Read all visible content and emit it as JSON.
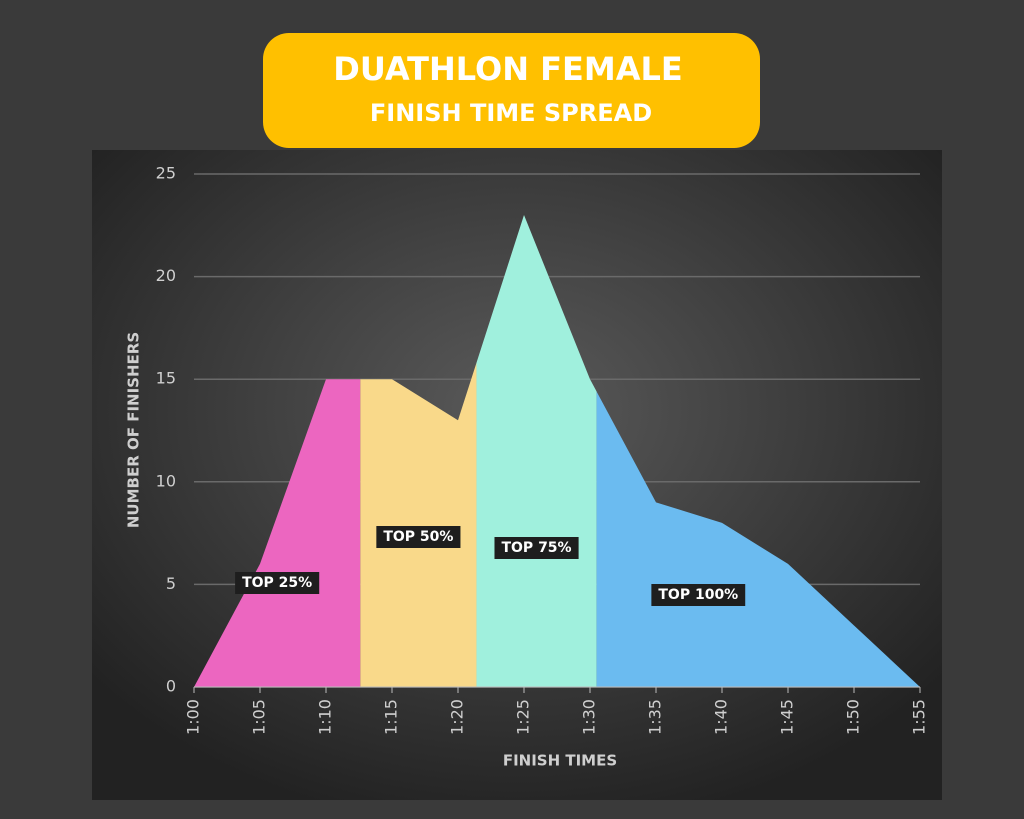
{
  "chart_data": {
    "type": "area",
    "title": "DUATHLON FEMALE",
    "subtitle": "FINISH TIME SPREAD",
    "x_label": "FINISH TIMES",
    "y_label": "NUMBER OF FINISHERS",
    "x": [
      60,
      65,
      70,
      75,
      80,
      85,
      90,
      95,
      100,
      105,
      110,
      115
    ],
    "values": [
      0,
      6,
      15,
      15,
      13,
      23,
      15,
      9,
      8,
      6,
      3,
      0
    ],
    "xlim": [
      60,
      115
    ],
    "xticks": [
      {
        "value": 60,
        "label": "1:00"
      },
      {
        "value": 65,
        "label": "1:05"
      },
      {
        "value": 70,
        "label": "1:10"
      },
      {
        "value": 75,
        "label": "1:15"
      },
      {
        "value": 80,
        "label": "1:20"
      },
      {
        "value": 85,
        "label": "1:25"
      },
      {
        "value": 90,
        "label": "1:30"
      },
      {
        "value": 95,
        "label": "1:35"
      },
      {
        "value": 100,
        "label": "1:40"
      },
      {
        "value": 105,
        "label": "1:45"
      },
      {
        "value": 110,
        "label": "1:50"
      },
      {
        "value": 115,
        "label": "1:55"
      }
    ],
    "ylim": [
      0,
      25
    ],
    "yticks": [
      0,
      5,
      10,
      15,
      20,
      25
    ],
    "grid": true,
    "bands": [
      {
        "label": "TOP 25%",
        "color": "#ec66c0",
        "x0": 60,
        "x1": 72.6
      },
      {
        "label": "TOP 50%",
        "color": "#f9d98a",
        "x0": 72.6,
        "x1": 81.4
      },
      {
        "label": "TOP 75%",
        "color": "#a0f0dd",
        "x0": 81.4,
        "x1": 90.5
      },
      {
        "label": "TOP 100%",
        "color": "#6bbbf0",
        "x0": 90.5,
        "x1": 115
      }
    ]
  }
}
